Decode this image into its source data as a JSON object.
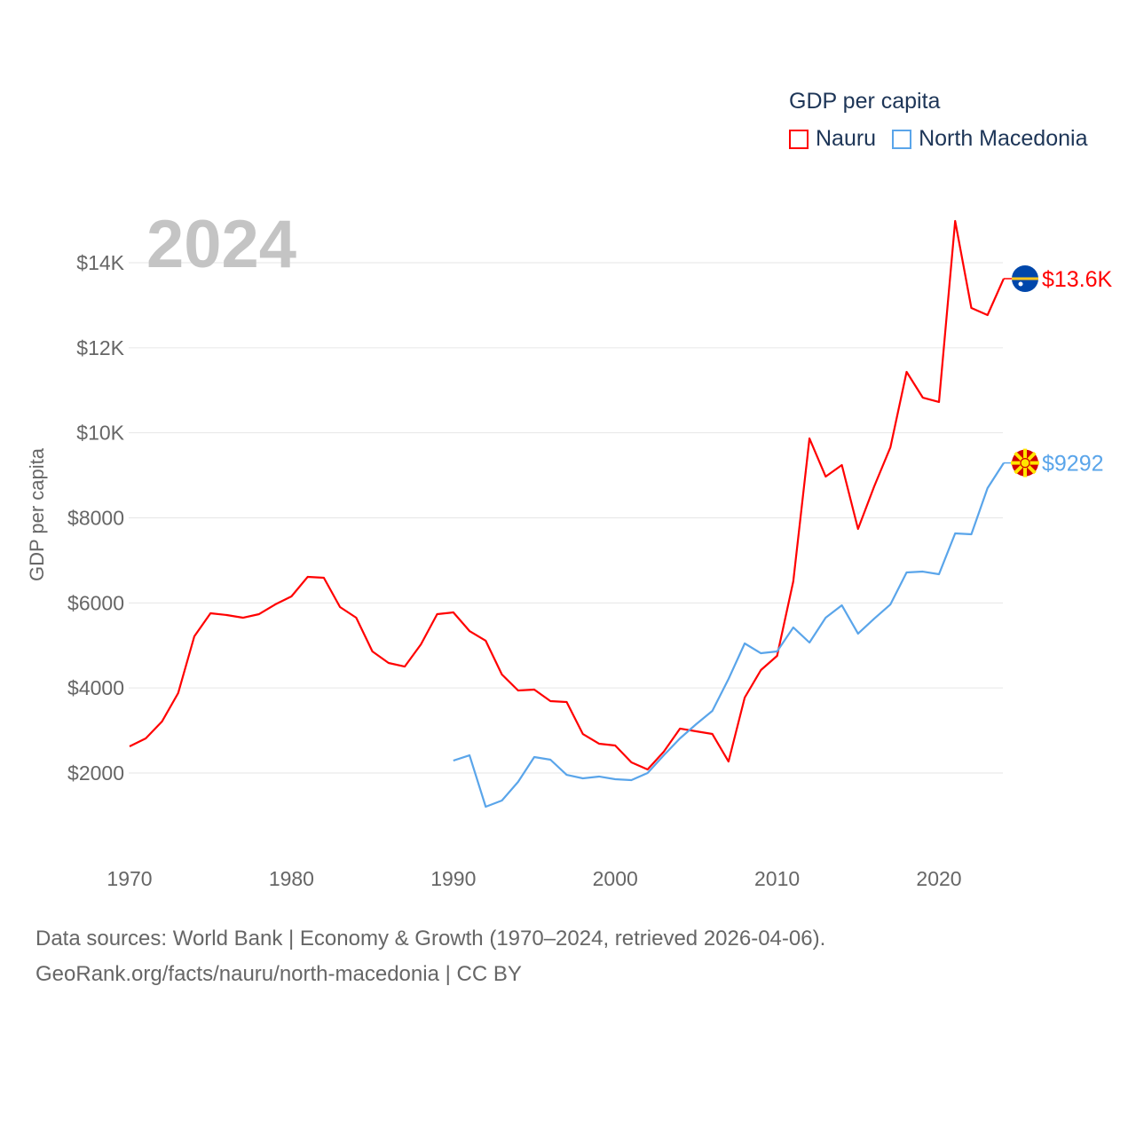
{
  "chart_data": {
    "type": "line",
    "legend_title": "GDP per capita",
    "ylabel": "GDP per capita",
    "year_label": "2024",
    "xlim": [
      1970,
      2024
    ],
    "ylim": [
      1000,
      15500
    ],
    "x_ticks": [
      1970,
      1980,
      1990,
      2000,
      2010,
      2020
    ],
    "x_tick_labels": [
      "1970",
      "1980",
      "1990",
      "2000",
      "2010",
      "2020"
    ],
    "y_ticks": [
      2000,
      4000,
      6000,
      8000,
      10000,
      12000,
      14000
    ],
    "y_tick_labels": [
      "$2000",
      "$4000",
      "$6000",
      "$8000",
      "$10K",
      "$12K",
      "$14K"
    ],
    "grid": true,
    "legend_position": "top-right",
    "series": [
      {
        "name": "Nauru",
        "color": "#ff0000",
        "end_label": "$13.6K",
        "start_year": 1970,
        "values": [
          2626,
          2814,
          3210,
          3878,
          5214,
          5757,
          5715,
          5652,
          5736,
          5965,
          6153,
          6612,
          6591,
          5903,
          5652,
          4859,
          4588,
          4504,
          5026,
          5736,
          5777,
          5339,
          5110,
          4317,
          3941,
          3962,
          3690,
          3670,
          2918,
          2689,
          2647,
          2250,
          2083,
          2501,
          3044,
          2981,
          2918,
          2271,
          3774,
          4421,
          4755,
          6508,
          9868,
          8971,
          9242,
          7739,
          8741,
          9659,
          11433,
          10828,
          10724,
          14981,
          12936,
          12769,
          13625
        ]
      },
      {
        "name": "North Macedonia",
        "color": "#5aa5ea",
        "end_label": "$9292",
        "start_year": 1990,
        "values": [
          2292,
          2417,
          1207,
          1353,
          1791,
          2376,
          2313,
          1958,
          1875,
          1917,
          1854,
          1833,
          2000,
          2417,
          2814,
          3148,
          3461,
          4212,
          5047,
          4817,
          4859,
          5423,
          5068,
          5652,
          5944,
          5277,
          5631,
          5965,
          6716,
          6737,
          6675,
          7635,
          7614,
          8699,
          9292
        ]
      }
    ]
  },
  "footer": {
    "line1": "Data sources: World Bank | Economy & Growth (1970–2024, retrieved 2026-04-06).",
    "line2": "GeoRank.org/facts/nauru/north-macedonia | CC BY"
  }
}
